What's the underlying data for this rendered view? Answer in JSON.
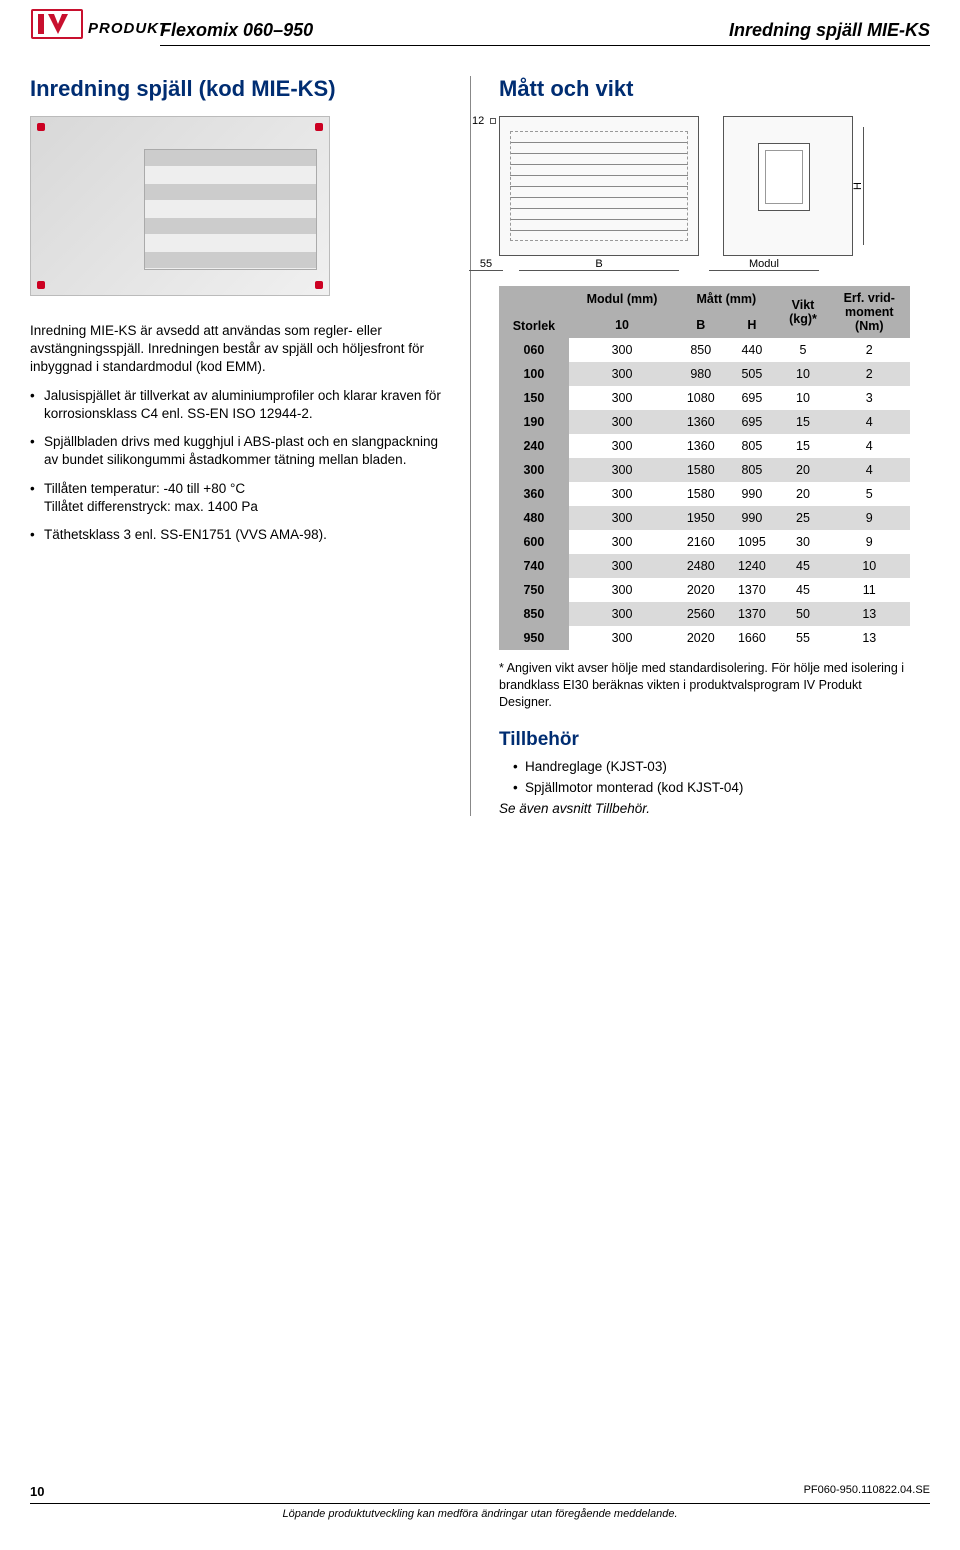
{
  "header": {
    "logo_text": "PRODUKT",
    "left": "Flexomix 060–950",
    "right": "Inredning spjäll MIE-KS"
  },
  "left_col": {
    "section_title": "Inredning spjäll (kod MIE-KS)",
    "intro": "Inredning MIE-KS är avsedd att användas som regler- eller avstängningsspjäll. Inredningen består av spjäll och höljesfront för inbyggnad i standardmodul (kod EMM).",
    "bullets": [
      "Jalusispjället är tillverkat av aluminiumprofiler och klarar kraven för korrosionsklass C4 enl. SS-EN ISO 12944-2.",
      "Spjällbladen drivs med kugghjul i ABS-plast och en slangpackning av bundet silikongummi åstadkommer tätning mellan bladen.",
      "Tillåten temperatur: -40 till +80 °C\nTillåtet differenstryck: max. 1400 Pa",
      "Täthetsklass 3 enl. SS-EN1751 (VVS AMA-98)."
    ]
  },
  "right_col": {
    "section_title": "Mått och vikt",
    "dim_labels": {
      "l12": "12",
      "l55": "55",
      "B": "B",
      "Modul": "Modul",
      "H": "H"
    },
    "table": {
      "header_group": {
        "modul": "Modul (mm)",
        "matt": "Mått (mm)",
        "vikt": "Vikt\n(kg)*",
        "erf": "Erf. vrid-\nmoment\n(Nm)"
      },
      "cols": [
        "Storlek",
        "10",
        "B",
        "H"
      ],
      "rows": [
        [
          "060",
          "300",
          "850",
          "440",
          "5",
          "2"
        ],
        [
          "100",
          "300",
          "980",
          "505",
          "10",
          "2"
        ],
        [
          "150",
          "300",
          "1080",
          "695",
          "10",
          "3"
        ],
        [
          "190",
          "300",
          "1360",
          "695",
          "15",
          "4"
        ],
        [
          "240",
          "300",
          "1360",
          "805",
          "15",
          "4"
        ],
        [
          "300",
          "300",
          "1580",
          "805",
          "20",
          "4"
        ],
        [
          "360",
          "300",
          "1580",
          "990",
          "20",
          "5"
        ],
        [
          "480",
          "300",
          "1950",
          "990",
          "25",
          "9"
        ],
        [
          "600",
          "300",
          "2160",
          "1095",
          "30",
          "9"
        ],
        [
          "740",
          "300",
          "2480",
          "1240",
          "45",
          "10"
        ],
        [
          "750",
          "300",
          "2020",
          "1370",
          "45",
          "11"
        ],
        [
          "850",
          "300",
          "2560",
          "1370",
          "50",
          "13"
        ],
        [
          "950",
          "300",
          "2020",
          "1660",
          "55",
          "13"
        ]
      ],
      "colors": {
        "header_bg": "#b0b0b0",
        "row_alt_bg": "#dadada",
        "firstcol_bg": "#b0b0b0"
      }
    },
    "footnote": "* Angiven vikt avser hölje med standardisolering. För hölje med isolering i brandklass EI30 beräknas vikten i produktvalsprogram IV Produkt Designer.",
    "tillbehor_head": "Tillbehör",
    "accessories": [
      "Handreglage (KJST-03)",
      "Spjällmotor monterad (kod KJST-04)"
    ],
    "see_also": "Se även avsnitt Tillbehör."
  },
  "footer": {
    "page": "10",
    "docid": "PF060-950.110822.04.SE",
    "disclaimer": "Löpande produktutveckling kan medföra ändringar utan föregående meddelande."
  }
}
